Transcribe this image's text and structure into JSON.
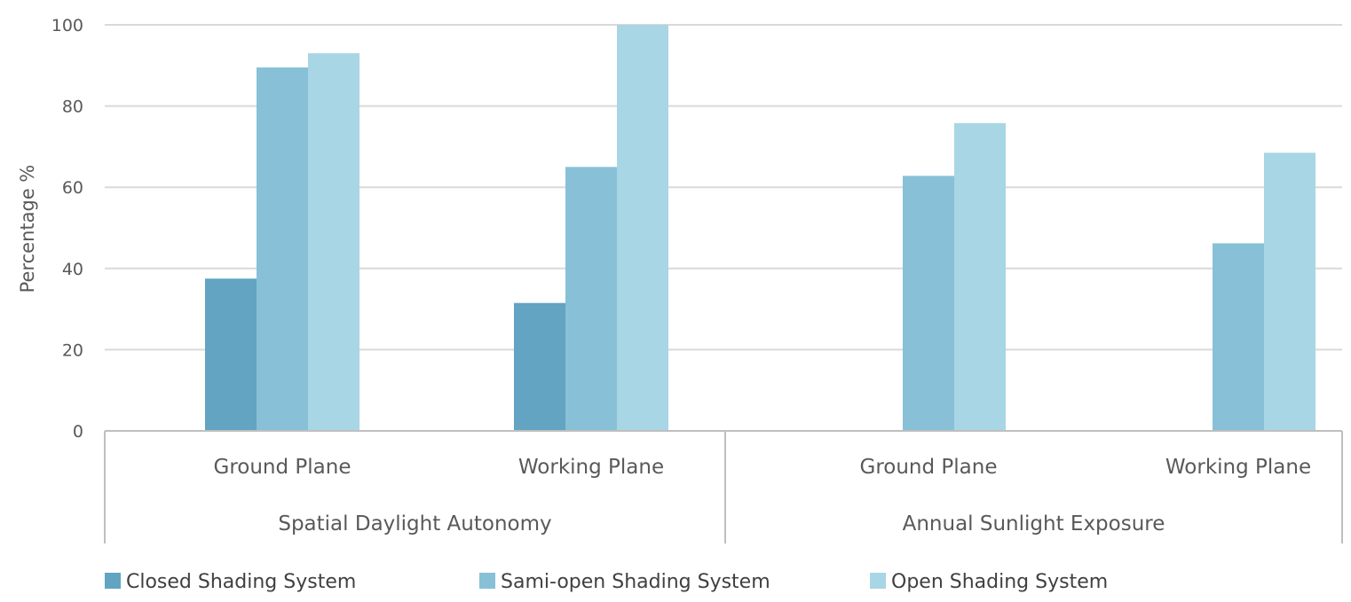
{
  "chart_data": {
    "type": "bar",
    "ylabel": "Percentage %",
    "ylim": [
      0,
      100
    ],
    "yticks": [
      0,
      20,
      40,
      60,
      80,
      100
    ],
    "grid": true,
    "legend_position": "bottom",
    "groups": [
      {
        "label": "Spatial Daylight Autonomy",
        "categories": [
          "Ground Plane",
          "Working Plane"
        ]
      },
      {
        "label": "Annual Sunlight Exposure",
        "categories": [
          "Ground Plane",
          "Working Plane"
        ]
      }
    ],
    "categories": [
      "Spatial Daylight Autonomy - Ground Plane",
      "Spatial Daylight Autonomy - Working Plane",
      "Annual Sunlight Exposure - Ground Plane",
      "Annual Sunlight Exposure - Working Plane"
    ],
    "series": [
      {
        "name": "Closed Shading System",
        "color": "#62a4c1",
        "values": [
          37.5,
          31.5,
          null,
          null
        ]
      },
      {
        "name": "Sami-open Shading System",
        "color": "#88c0d7",
        "values": [
          89.5,
          65,
          62.8,
          46.2
        ]
      },
      {
        "name": "Open Shading System",
        "color": "#a8d6e5",
        "values": [
          93,
          100,
          75.8,
          68.5
        ]
      }
    ],
    "colors": {
      "gridline": "#d9d9d9",
      "axis": "#bfbfbf",
      "text": "#595959"
    }
  }
}
